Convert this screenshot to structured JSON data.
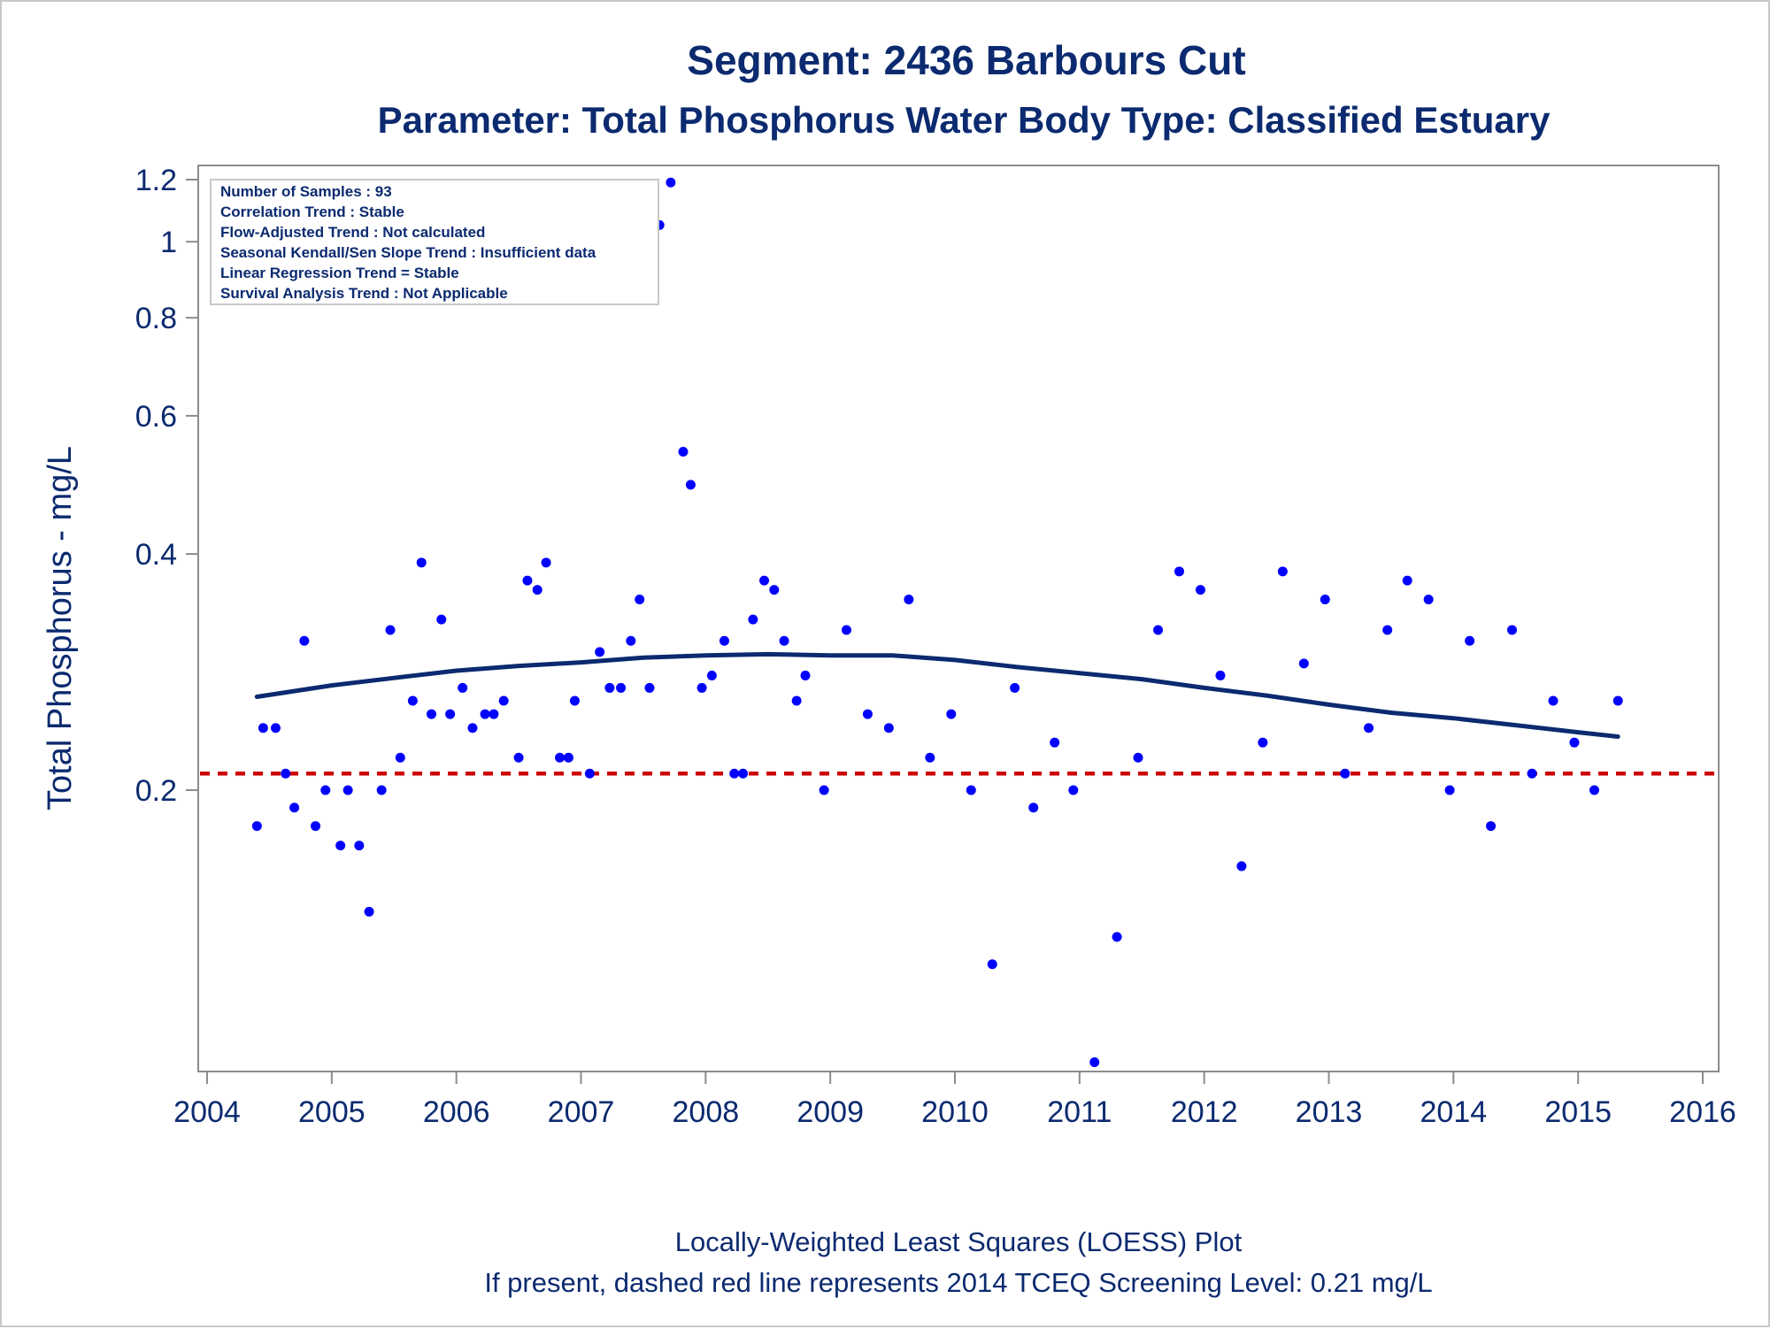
{
  "chart_data": {
    "type": "scatter",
    "title": "Segment: 2436  Barbours Cut",
    "subtitle": "Parameter: Total Phosphorus   Water Body Type: Classified Estuary",
    "xlabel": "",
    "ylabel": "Total Phosphorus - mg/L",
    "x_ticks": [
      "2004",
      "2005",
      "2006",
      "2007",
      "2008",
      "2009",
      "2010",
      "2011",
      "2012",
      "2013",
      "2014",
      "2015",
      "2016"
    ],
    "y_ticks": [
      "0.2",
      "0.4",
      "0.6",
      "0.8",
      "1",
      "1.2"
    ],
    "y_tick_values": [
      0.2,
      0.4,
      0.6,
      0.8,
      1.0,
      1.2
    ],
    "y_scale": "log",
    "xlim": [
      2004.0,
      2016.0
    ],
    "ylim": [
      0.082,
      1.25
    ],
    "grid": false,
    "stats_box": [
      "Number of Samples : 93",
      "Correlation Trend : Stable",
      "Flow-Adjusted Trend : Not calculated",
      "Seasonal Kendall/Sen Slope Trend : Insufficient data",
      "Linear Regression Trend = Stable",
      "Survival Analysis Trend : Not Applicable"
    ],
    "footnotes": [
      "Locally-Weighted Least Squares (LOESS) Plot",
      "If present, dashed red line represents 2014 TCEQ Screening Level: 0.21 mg/L"
    ],
    "screening_level": 0.21,
    "colors": {
      "points": "#0000ff",
      "loess": "#0b2a6f",
      "screening": "#cc0000",
      "text": "#0b2a6f",
      "frame": "#8c8c8c"
    },
    "points": [
      {
        "x": 2004.4,
        "y": 0.18
      },
      {
        "x": 2004.45,
        "y": 0.24
      },
      {
        "x": 2004.55,
        "y": 0.24
      },
      {
        "x": 2004.63,
        "y": 0.21
      },
      {
        "x": 2004.7,
        "y": 0.19
      },
      {
        "x": 2004.78,
        "y": 0.31
      },
      {
        "x": 2004.87,
        "y": 0.18
      },
      {
        "x": 2004.95,
        "y": 0.2
      },
      {
        "x": 2005.07,
        "y": 0.17
      },
      {
        "x": 2005.13,
        "y": 0.2
      },
      {
        "x": 2005.22,
        "y": 0.17
      },
      {
        "x": 2005.3,
        "y": 0.14
      },
      {
        "x": 2005.4,
        "y": 0.2
      },
      {
        "x": 2005.47,
        "y": 0.32
      },
      {
        "x": 2005.55,
        "y": 0.22
      },
      {
        "x": 2005.65,
        "y": 0.26
      },
      {
        "x": 2005.72,
        "y": 0.39
      },
      {
        "x": 2005.8,
        "y": 0.25
      },
      {
        "x": 2005.88,
        "y": 0.33
      },
      {
        "x": 2005.95,
        "y": 0.25
      },
      {
        "x": 2006.05,
        "y": 0.27
      },
      {
        "x": 2006.13,
        "y": 0.24
      },
      {
        "x": 2006.23,
        "y": 0.25
      },
      {
        "x": 2006.3,
        "y": 0.25
      },
      {
        "x": 2006.38,
        "y": 0.26
      },
      {
        "x": 2006.5,
        "y": 0.22
      },
      {
        "x": 2006.57,
        "y": 0.37
      },
      {
        "x": 2006.65,
        "y": 0.36
      },
      {
        "x": 2006.72,
        "y": 0.39
      },
      {
        "x": 2006.83,
        "y": 0.22
      },
      {
        "x": 2006.9,
        "y": 0.22
      },
      {
        "x": 2006.95,
        "y": 0.26
      },
      {
        "x": 2007.07,
        "y": 0.21
      },
      {
        "x": 2007.15,
        "y": 0.3
      },
      {
        "x": 2007.23,
        "y": 0.27
      },
      {
        "x": 2007.32,
        "y": 0.27
      },
      {
        "x": 2007.4,
        "y": 0.31
      },
      {
        "x": 2007.47,
        "y": 0.35
      },
      {
        "x": 2007.55,
        "y": 0.27
      },
      {
        "x": 2007.63,
        "y": 1.05
      },
      {
        "x": 2007.72,
        "y": 1.19
      },
      {
        "x": 2007.82,
        "y": 0.54
      },
      {
        "x": 2007.88,
        "y": 0.49
      },
      {
        "x": 2007.97,
        "y": 0.27
      },
      {
        "x": 2008.05,
        "y": 0.28
      },
      {
        "x": 2008.15,
        "y": 0.31
      },
      {
        "x": 2008.23,
        "y": 0.21
      },
      {
        "x": 2008.3,
        "y": 0.21
      },
      {
        "x": 2008.38,
        "y": 0.33
      },
      {
        "x": 2008.47,
        "y": 0.37
      },
      {
        "x": 2008.55,
        "y": 0.36
      },
      {
        "x": 2008.63,
        "y": 0.31
      },
      {
        "x": 2008.73,
        "y": 0.26
      },
      {
        "x": 2008.8,
        "y": 0.28
      },
      {
        "x": 2008.95,
        "y": 0.2
      },
      {
        "x": 2009.13,
        "y": 0.32
      },
      {
        "x": 2009.3,
        "y": 0.25
      },
      {
        "x": 2009.47,
        "y": 0.24
      },
      {
        "x": 2009.63,
        "y": 0.35
      },
      {
        "x": 2009.8,
        "y": 0.22
      },
      {
        "x": 2009.97,
        "y": 0.25
      },
      {
        "x": 2010.13,
        "y": 0.2
      },
      {
        "x": 2010.3,
        "y": 0.12
      },
      {
        "x": 2010.48,
        "y": 0.27
      },
      {
        "x": 2010.63,
        "y": 0.19
      },
      {
        "x": 2010.8,
        "y": 0.23
      },
      {
        "x": 2010.95,
        "y": 0.2
      },
      {
        "x": 2011.12,
        "y": 0.09
      },
      {
        "x": 2011.3,
        "y": 0.13
      },
      {
        "x": 2011.47,
        "y": 0.22
      },
      {
        "x": 2011.63,
        "y": 0.32
      },
      {
        "x": 2011.8,
        "y": 0.38
      },
      {
        "x": 2011.97,
        "y": 0.36
      },
      {
        "x": 2012.13,
        "y": 0.28
      },
      {
        "x": 2012.3,
        "y": 0.16
      },
      {
        "x": 2012.47,
        "y": 0.23
      },
      {
        "x": 2012.63,
        "y": 0.38
      },
      {
        "x": 2012.8,
        "y": 0.29
      },
      {
        "x": 2012.97,
        "y": 0.35
      },
      {
        "x": 2013.13,
        "y": 0.21
      },
      {
        "x": 2013.32,
        "y": 0.24
      },
      {
        "x": 2013.47,
        "y": 0.32
      },
      {
        "x": 2013.63,
        "y": 0.37
      },
      {
        "x": 2013.8,
        "y": 0.35
      },
      {
        "x": 2013.97,
        "y": 0.2
      },
      {
        "x": 2014.13,
        "y": 0.31
      },
      {
        "x": 2014.3,
        "y": 0.18
      },
      {
        "x": 2014.47,
        "y": 0.32
      },
      {
        "x": 2014.63,
        "y": 0.21
      },
      {
        "x": 2014.8,
        "y": 0.26
      },
      {
        "x": 2014.97,
        "y": 0.23
      },
      {
        "x": 2015.13,
        "y": 0.2
      },
      {
        "x": 2015.32,
        "y": 0.26
      }
    ],
    "loess": [
      {
        "x": 2004.4,
        "y": 0.263
      },
      {
        "x": 2005.0,
        "y": 0.272
      },
      {
        "x": 2005.5,
        "y": 0.278
      },
      {
        "x": 2006.0,
        "y": 0.284
      },
      {
        "x": 2006.5,
        "y": 0.288
      },
      {
        "x": 2007.0,
        "y": 0.291
      },
      {
        "x": 2007.5,
        "y": 0.295
      },
      {
        "x": 2008.0,
        "y": 0.297
      },
      {
        "x": 2008.5,
        "y": 0.298
      },
      {
        "x": 2009.0,
        "y": 0.297
      },
      {
        "x": 2009.5,
        "y": 0.297
      },
      {
        "x": 2010.0,
        "y": 0.293
      },
      {
        "x": 2010.5,
        "y": 0.287
      },
      {
        "x": 2011.0,
        "y": 0.282
      },
      {
        "x": 2011.5,
        "y": 0.277
      },
      {
        "x": 2012.0,
        "y": 0.27
      },
      {
        "x": 2012.5,
        "y": 0.264
      },
      {
        "x": 2013.0,
        "y": 0.257
      },
      {
        "x": 2013.5,
        "y": 0.251
      },
      {
        "x": 2014.0,
        "y": 0.247
      },
      {
        "x": 2014.5,
        "y": 0.242
      },
      {
        "x": 2015.0,
        "y": 0.237
      },
      {
        "x": 2015.32,
        "y": 0.234
      }
    ]
  }
}
